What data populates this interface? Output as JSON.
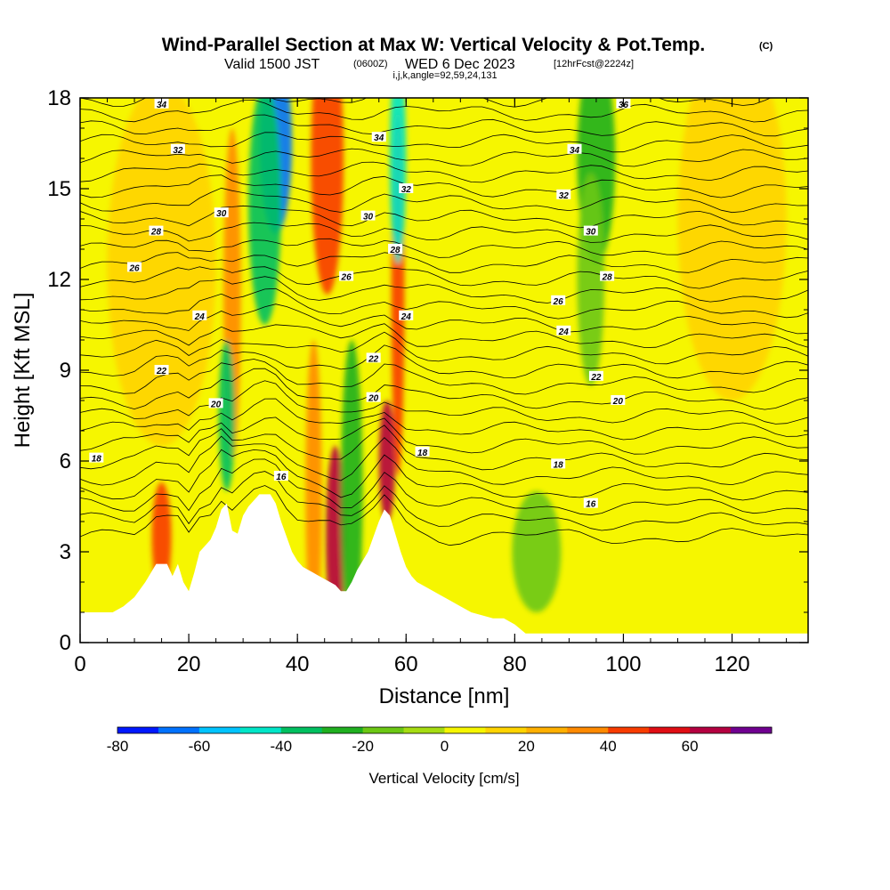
{
  "title": {
    "main": "Wind-Parallel Section at Max W: Vertical Velocity & Pot.Temp.",
    "tag": "(C)",
    "valid_prefix": "Valid 1500 JST",
    "valid_utc": "(0600Z)",
    "valid_date": "WED 6 Dec 2023",
    "forecast": "[12hrFcst@2224z]",
    "indices": "i,j,k,angle=92,59,24,131"
  },
  "chart_data": {
    "type": "heatmap",
    "xlabel": "Distance [nm]",
    "ylabel": "Height [Kft MSL]",
    "xlim": [
      0,
      134
    ],
    "ylim": [
      0,
      18
    ],
    "xticks": [
      0,
      20,
      40,
      60,
      80,
      100,
      120
    ],
    "yticks": [
      0,
      3,
      6,
      9,
      12,
      15,
      18
    ],
    "terrain_kft": {
      "x": [
        0,
        3,
        6,
        8,
        10,
        12,
        14,
        15,
        16,
        17,
        18,
        19,
        20,
        21,
        22,
        23,
        24,
        25,
        26,
        27,
        28,
        29,
        30,
        31,
        32,
        33,
        34,
        35,
        36,
        37,
        38,
        39,
        40,
        41,
        42,
        43,
        44,
        45,
        46,
        47,
        48,
        49,
        50,
        51,
        52,
        53,
        54,
        55,
        56,
        57,
        58,
        59,
        60,
        61,
        62,
        64,
        66,
        68,
        70,
        72,
        74,
        76,
        78,
        80,
        82,
        86,
        90,
        96,
        100,
        110,
        120,
        130,
        134
      ],
      "y": [
        1.0,
        1.0,
        1.0,
        1.2,
        1.5,
        2.0,
        2.6,
        2.6,
        2.6,
        2.2,
        2.6,
        2.0,
        1.7,
        2.3,
        3.0,
        3.2,
        3.4,
        3.8,
        4.4,
        4.6,
        3.7,
        3.6,
        4.2,
        4.5,
        4.7,
        4.9,
        4.9,
        4.9,
        4.6,
        4.0,
        3.5,
        3.0,
        2.7,
        2.5,
        2.4,
        2.3,
        2.2,
        2.1,
        2.0,
        1.9,
        1.7,
        1.7,
        2.0,
        2.4,
        2.7,
        3.0,
        3.5,
        4.0,
        4.4,
        4.2,
        3.6,
        3.0,
        2.5,
        2.2,
        2.0,
        1.8,
        1.6,
        1.4,
        1.2,
        1.0,
        0.9,
        0.8,
        0.8,
        0.6,
        0.3,
        0.3,
        0.3,
        0.3,
        0.3,
        0.3,
        0.3,
        0.3,
        0.3
      ]
    },
    "vertical_velocity": {
      "name": "Vertical Velocity [cm/s]",
      "levels": [
        -80,
        -70,
        -60,
        -50,
        -40,
        -30,
        -20,
        -10,
        0,
        10,
        20,
        30,
        40,
        50,
        60,
        70
      ],
      "colors": [
        "#0018ff",
        "#0072ff",
        "#00c4ff",
        "#00e6c8",
        "#00c060",
        "#20b020",
        "#6cc814",
        "#a6dc12",
        "#f6f600",
        "#ffd400",
        "#ffb000",
        "#ff8a00",
        "#f83c00",
        "#e00e14",
        "#b40040",
        "#700090"
      ],
      "features": [
        {
          "x": 15,
          "y": 3.5,
          "w": 1.8,
          "h": 1.8,
          "value": 40
        },
        {
          "x": 28,
          "y": 11.5,
          "w": 1.6,
          "h": 5.5,
          "value": 30
        },
        {
          "x": 27,
          "y": 7.5,
          "w": 1.5,
          "h": 2.5,
          "value": -35
        },
        {
          "x": 36,
          "y": 16.5,
          "w": 3.0,
          "h": 3.0,
          "value": -65
        },
        {
          "x": 34,
          "y": 14.5,
          "w": 3.0,
          "h": 4.0,
          "value": -40
        },
        {
          "x": 45.5,
          "y": 16.0,
          "w": 3.0,
          "h": 4.5,
          "value": 45
        },
        {
          "x": 47,
          "y": 3.5,
          "w": 1.8,
          "h": 3.0,
          "value": 60
        },
        {
          "x": 43,
          "y": 5.0,
          "w": 1.5,
          "h": 5.0,
          "value": 30
        },
        {
          "x": 50,
          "y": 5.0,
          "w": 2.0,
          "h": 5.0,
          "value": -25
        },
        {
          "x": 56.5,
          "y": 6.0,
          "w": 1.5,
          "h": 2.0,
          "value": 65
        },
        {
          "x": 58.5,
          "y": 11.5,
          "w": 1.2,
          "h": 6.0,
          "value": 40
        },
        {
          "x": 58.5,
          "y": 16.0,
          "w": 1.5,
          "h": 3.5,
          "value": -45
        },
        {
          "x": 95,
          "y": 16.0,
          "w": 3.5,
          "h": 3.5,
          "value": -30
        },
        {
          "x": 94,
          "y": 12.0,
          "w": 2.5,
          "h": 3.5,
          "value": -15
        },
        {
          "x": 84,
          "y": 3.0,
          "w": 4.5,
          "h": 2.0,
          "value": -15
        },
        {
          "x": 15,
          "y": 12.5,
          "w": 10,
          "h": 6.0,
          "value": 15
        },
        {
          "x": 120,
          "y": 14.0,
          "w": 10,
          "h": 6.0,
          "value": 15
        }
      ]
    },
    "potential_temperature": {
      "name": "Pot.Temp. (C)",
      "contour_labels": [
        {
          "text": "34",
          "x": 15,
          "y": 17.8
        },
        {
          "text": "36",
          "x": 100,
          "y": 17.8
        },
        {
          "text": "32",
          "x": 18,
          "y": 16.3
        },
        {
          "text": "34",
          "x": 55,
          "y": 16.7
        },
        {
          "text": "34",
          "x": 91,
          "y": 16.3
        },
        {
          "text": "32",
          "x": 60,
          "y": 15.0
        },
        {
          "text": "32",
          "x": 89,
          "y": 14.8
        },
        {
          "text": "30",
          "x": 26,
          "y": 14.2
        },
        {
          "text": "30",
          "x": 53,
          "y": 14.1
        },
        {
          "text": "30",
          "x": 94,
          "y": 13.6
        },
        {
          "text": "28",
          "x": 14,
          "y": 13.6
        },
        {
          "text": "28",
          "x": 58,
          "y": 13.0
        },
        {
          "text": "26",
          "x": 10,
          "y": 12.4
        },
        {
          "text": "26",
          "x": 49,
          "y": 12.1
        },
        {
          "text": "28",
          "x": 97,
          "y": 12.1
        },
        {
          "text": "26",
          "x": 88,
          "y": 11.3
        },
        {
          "text": "24",
          "x": 22,
          "y": 10.8
        },
        {
          "text": "24",
          "x": 60,
          "y": 10.8
        },
        {
          "text": "24",
          "x": 89,
          "y": 10.3
        },
        {
          "text": "22",
          "x": 54,
          "y": 9.4
        },
        {
          "text": "22",
          "x": 15,
          "y": 9.0
        },
        {
          "text": "22",
          "x": 95,
          "y": 8.8
        },
        {
          "text": "20",
          "x": 25,
          "y": 7.9
        },
        {
          "text": "20",
          "x": 54,
          "y": 8.1
        },
        {
          "text": "20",
          "x": 99,
          "y": 8.0
        },
        {
          "text": "18",
          "x": 3,
          "y": 6.1
        },
        {
          "text": "18",
          "x": 63,
          "y": 6.3
        },
        {
          "text": "18",
          "x": 88,
          "y": 5.9
        },
        {
          "text": "16",
          "x": 37,
          "y": 5.5
        },
        {
          "text": "16",
          "x": 94,
          "y": 4.6
        }
      ]
    },
    "colorbar": {
      "label": "Vertical Velocity [cm/s]",
      "ticks": [
        -80,
        -60,
        -40,
        -20,
        0,
        20,
        40,
        60
      ]
    }
  }
}
